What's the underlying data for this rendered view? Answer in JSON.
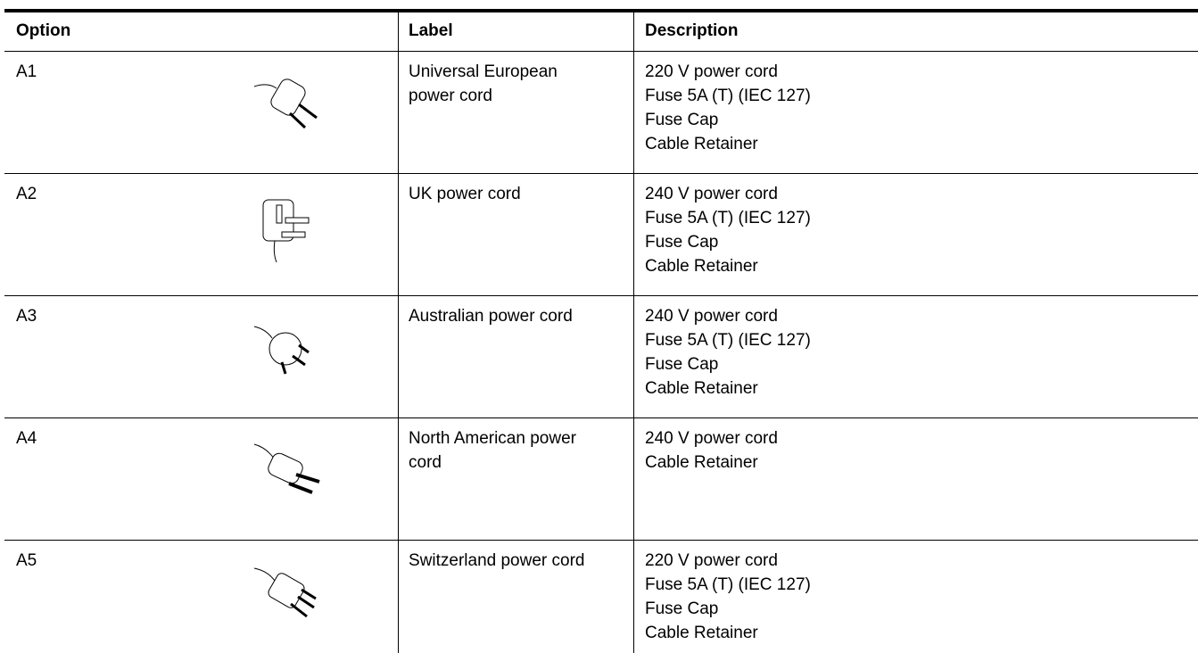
{
  "table": {
    "columns": [
      "Option",
      "Label",
      "Description"
    ],
    "rows": [
      {
        "option": "A1",
        "label": "Universal European power cord",
        "description": [
          "220 V power cord",
          "Fuse 5A (T) (IEC 127)",
          "Fuse Cap",
          "Cable Retainer"
        ]
      },
      {
        "option": "A2",
        "label": "UK power cord",
        "description": [
          "240 V power cord",
          "Fuse 5A (T) (IEC 127)",
          "Fuse Cap",
          "Cable Retainer"
        ]
      },
      {
        "option": "A3",
        "label": "Australian power cord",
        "description": [
          "240 V power cord",
          "Fuse 5A (T) (IEC 127)",
          "Fuse Cap",
          "Cable Retainer"
        ]
      },
      {
        "option": "A4",
        "label": "North American power cord",
        "description": [
          "240 V power cord",
          "Cable Retainer"
        ]
      },
      {
        "option": "A5",
        "label": "Switzerland power cord",
        "description": [
          "220 V power cord",
          "Fuse 5A (T) (IEC 127)",
          "Fuse Cap",
          "Cable Retainer"
        ]
      }
    ]
  }
}
